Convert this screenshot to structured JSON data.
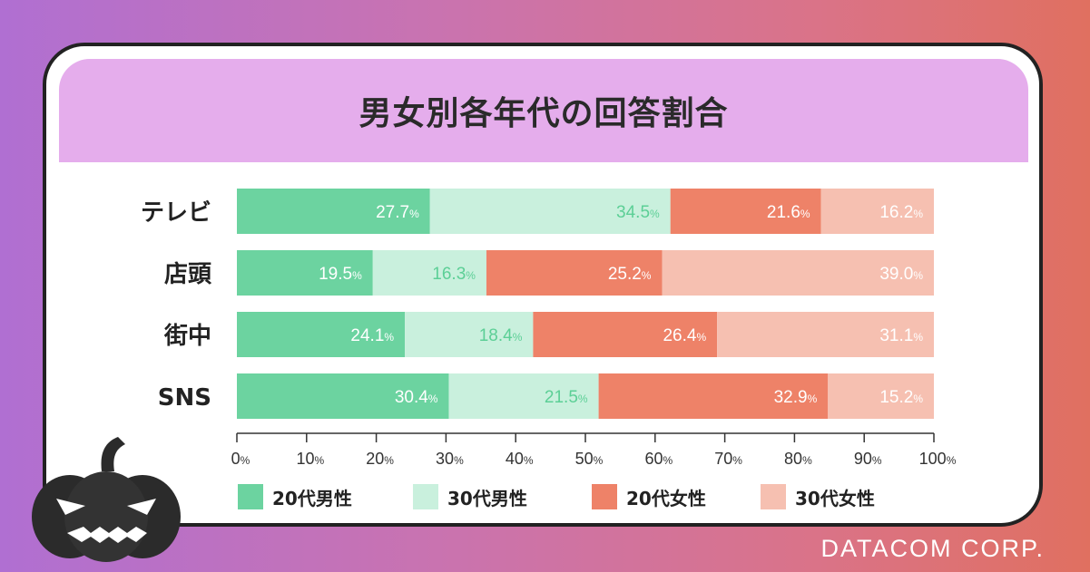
{
  "title": "男女別各年代の回答割合",
  "brand": "DATACOM CORP.",
  "colors": {
    "s1": "#6cd3a0",
    "s2": "#c9f0dd",
    "s3": "#ee8268",
    "s4": "#f6c0b1",
    "label_dark": "#ffffff",
    "label_light": "#5ccf96",
    "label_s4": "#ffffff"
  },
  "chart_data": {
    "type": "bar",
    "orientation": "horizontal",
    "stacked": true,
    "categories": [
      "テレビ",
      "店頭",
      "街中",
      "SNS"
    ],
    "series": [
      {
        "name": "20代男性",
        "values": [
          27.7,
          19.5,
          24.1,
          30.4
        ]
      },
      {
        "name": "30代男性",
        "values": [
          34.5,
          16.3,
          18.4,
          21.5
        ]
      },
      {
        "name": "20代女性",
        "values": [
          21.6,
          25.2,
          26.4,
          32.9
        ]
      },
      {
        "name": "30代女性",
        "values": [
          16.2,
          39.0,
          31.1,
          15.2
        ]
      }
    ],
    "xlim": [
      0,
      100
    ],
    "xticks": [
      0,
      10,
      20,
      30,
      40,
      50,
      60,
      70,
      80,
      90,
      100
    ],
    "unit": "%",
    "legend_position": "bottom"
  }
}
